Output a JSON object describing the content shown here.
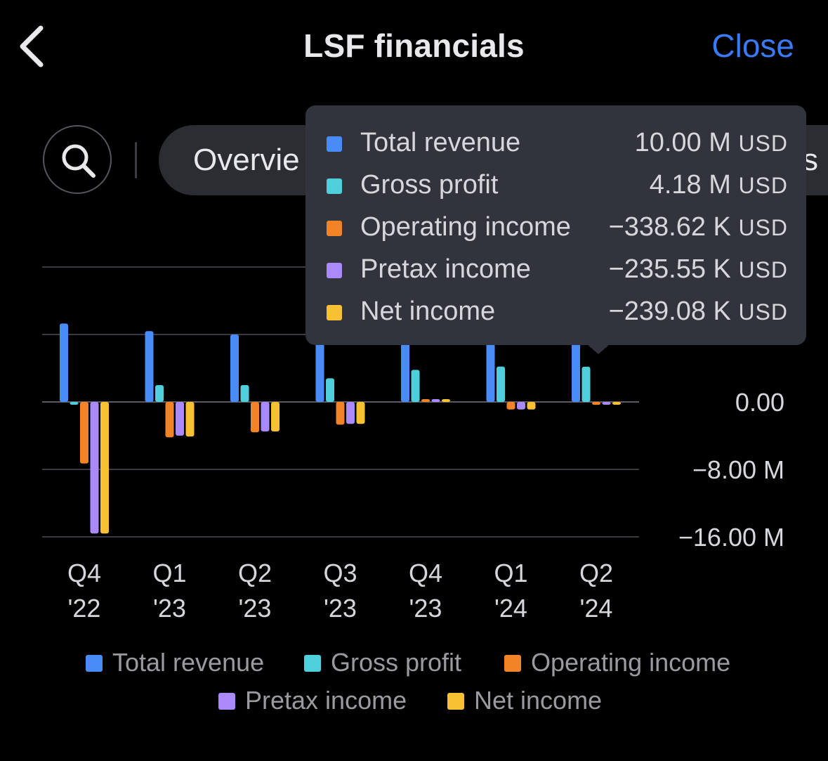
{
  "header": {
    "title": "LSF financials",
    "close_label": "Close",
    "back_icon": "chevron-left-icon"
  },
  "tabs": {
    "search_icon": "search-icon",
    "active_tab_label": "Overvie",
    "right_overflow_text": "s"
  },
  "colors": {
    "accent": "#3b7af6",
    "total_revenue": "#4a8cf7",
    "gross_profit": "#4fcfdc",
    "operating_income": "#f28427",
    "pretax_income": "#a98af8",
    "net_income": "#f8c133",
    "grid": "#3a3b40",
    "tooltip_bg": "#31343c"
  },
  "tooltip": {
    "rows": [
      {
        "label": "Total revenue",
        "value": "10.00 M",
        "unit": "USD",
        "color_key": "total_revenue"
      },
      {
        "label": "Gross profit",
        "value": "4.18 M",
        "unit": "USD",
        "color_key": "gross_profit"
      },
      {
        "label": "Operating income",
        "value": "−338.62 K",
        "unit": "USD",
        "color_key": "operating_income"
      },
      {
        "label": "Pretax income",
        "value": "−235.55 K",
        "unit": "USD",
        "color_key": "pretax_income"
      },
      {
        "label": "Net income",
        "value": "−239.08 K",
        "unit": "USD",
        "color_key": "net_income"
      }
    ]
  },
  "legend": [
    {
      "label": "Total revenue",
      "color_key": "total_revenue"
    },
    {
      "label": "Gross profit",
      "color_key": "gross_profit"
    },
    {
      "label": "Operating income",
      "color_key": "operating_income"
    },
    {
      "label": "Pretax income",
      "color_key": "pretax_income"
    },
    {
      "label": "Net income",
      "color_key": "net_income"
    }
  ],
  "chart_data": {
    "type": "bar",
    "categories": [
      [
        "Q4",
        "'22"
      ],
      [
        "Q1",
        "'23"
      ],
      [
        "Q2",
        "'23"
      ],
      [
        "Q3",
        "'23"
      ],
      [
        "Q4",
        "'23"
      ],
      [
        "Q1",
        "'24"
      ],
      [
        "Q2",
        "'24"
      ]
    ],
    "y_tick_labels": [
      {
        "value": 0,
        "label": "0.00"
      },
      {
        "value": -8,
        "label": "−8.00 M"
      },
      {
        "value": -16,
        "label": "−16.00 M"
      }
    ],
    "gridlines_at": [
      16,
      8,
      0,
      -8,
      -16
    ],
    "ylim": [
      -16,
      16
    ],
    "y_unit": "M USD",
    "series": [
      {
        "name": "Total revenue",
        "color_key": "total_revenue",
        "values": [
          9.3,
          8.4,
          8.0,
          7.6,
          7.9,
          8.0,
          10.0
        ]
      },
      {
        "name": "Gross profit",
        "color_key": "gross_profit",
        "values": [
          -0.3,
          2.0,
          2.0,
          2.8,
          3.8,
          4.2,
          4.18
        ]
      },
      {
        "name": "Operating income",
        "color_key": "operating_income",
        "values": [
          -7.3,
          -4.2,
          -3.6,
          -2.7,
          0.3,
          -0.9,
          -0.34
        ]
      },
      {
        "name": "Pretax income",
        "color_key": "pretax_income",
        "values": [
          -15.6,
          -4.0,
          -3.5,
          -2.6,
          0.3,
          -0.9,
          -0.24
        ]
      },
      {
        "name": "Net income",
        "color_key": "net_income",
        "values": [
          -15.6,
          -4.1,
          -3.5,
          -2.6,
          0.3,
          -0.9,
          -0.24
        ]
      }
    ],
    "grid": true,
    "legend_placement": "bottom"
  }
}
